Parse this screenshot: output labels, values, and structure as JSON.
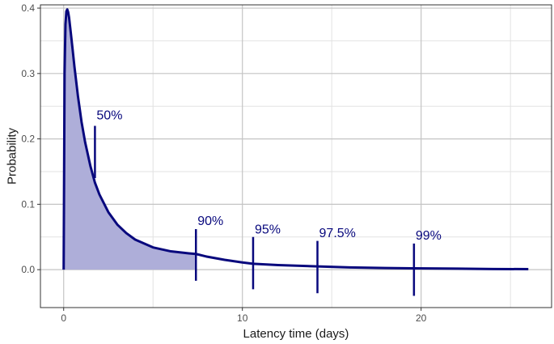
{
  "chart_data": {
    "type": "line",
    "title": "",
    "xlabel": "Latency time (days)",
    "ylabel": "Probability",
    "xlim": [
      -1.3,
      27.3
    ],
    "ylim": [
      -0.058,
      0.405
    ],
    "x_ticks": [
      0,
      10,
      20
    ],
    "x_tick_labels": [
      "0",
      "10",
      "20"
    ],
    "x_minor_ticks": [
      5,
      15,
      25
    ],
    "y_ticks": [
      0.0,
      0.1,
      0.2,
      0.3,
      0.4
    ],
    "y_tick_labels": [
      "0.0",
      "0.1",
      "0.2",
      "0.3",
      "0.4"
    ],
    "y_minor_ticks": [
      0.05,
      0.15,
      0.25,
      0.35
    ],
    "grid": true,
    "legend": "none",
    "curve": {
      "x": [
        0,
        0.05,
        0.1,
        0.15,
        0.2,
        0.25,
        0.3,
        0.4,
        0.5,
        0.6,
        0.8,
        1.0,
        1.2,
        1.5,
        1.75,
        2.0,
        2.5,
        3.0,
        3.5,
        4.0,
        5.0,
        6.0,
        7.0,
        7.4,
        8.0,
        9.0,
        10.0,
        10.6,
        12.0,
        14.2,
        16.0,
        18.0,
        19.6,
        22.0,
        24.0,
        26.0
      ],
      "y": [
        0,
        0.3,
        0.375,
        0.395,
        0.398,
        0.394,
        0.386,
        0.362,
        0.337,
        0.311,
        0.265,
        0.226,
        0.195,
        0.158,
        0.133,
        0.115,
        0.088,
        0.069,
        0.056,
        0.046,
        0.034,
        0.028,
        0.025,
        0.024,
        0.02,
        0.015,
        0.011,
        0.009,
        0.007,
        0.005,
        0.0035,
        0.0025,
        0.002,
        0.0015,
        0.001,
        0.0008
      ]
    },
    "shaded_area": {
      "from": 0,
      "to": 7.4
    },
    "percentiles": [
      {
        "label": "50%",
        "x": 1.75,
        "y_low": 0.14,
        "y_high": 0.22,
        "label_y": 0.23
      },
      {
        "label": "90%",
        "x": 7.4,
        "y_low": -0.017,
        "y_high": 0.062,
        "label_y": 0.068
      },
      {
        "label": "95%",
        "x": 10.6,
        "y_low": -0.03,
        "y_high": 0.05,
        "label_y": 0.055
      },
      {
        "label": "97.5%",
        "x": 14.2,
        "y_low": -0.036,
        "y_high": 0.044,
        "label_y": 0.05
      },
      {
        "label": "99%",
        "x": 19.6,
        "y_low": -0.04,
        "y_high": 0.04,
        "label_y": 0.046
      }
    ],
    "colors": {
      "line": "#08087d",
      "fill": "#aeaed9",
      "panel_border": "#333333",
      "grid_major": "#c4c4c4",
      "grid_minor": "#e2e2e2"
    }
  }
}
